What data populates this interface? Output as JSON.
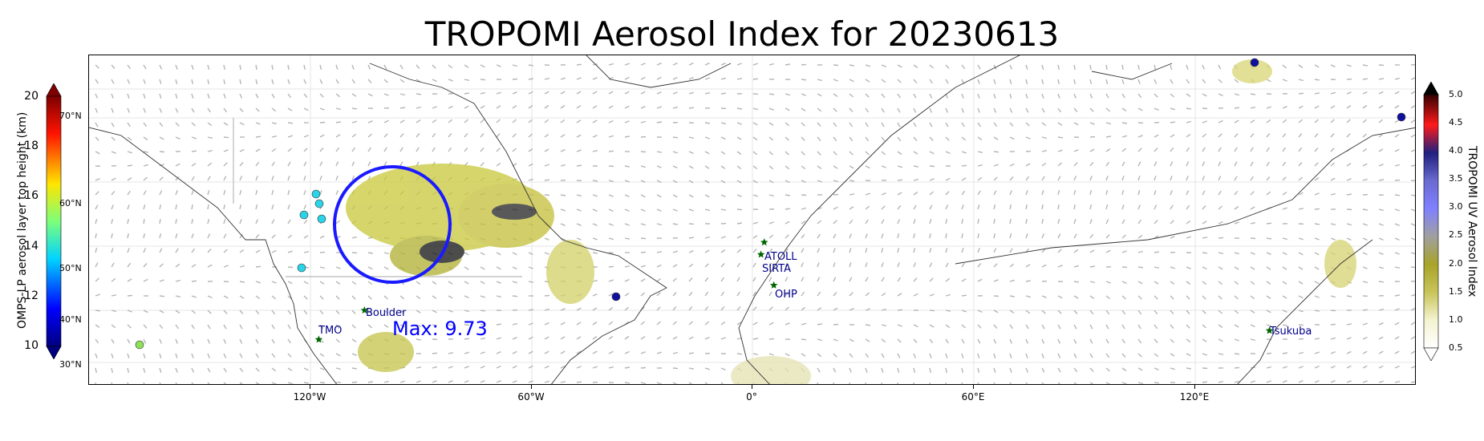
{
  "title": "TROPOMI Aerosol Index for 20230613",
  "max_label": "Max: 9.73",
  "x_axis": {
    "ticks": [
      {
        "label": "120°W",
        "lon": -120
      },
      {
        "label": "60°W",
        "lon": -60
      },
      {
        "label": "0°",
        "lon": 0
      },
      {
        "label": "60°E",
        "lon": 60
      },
      {
        "label": "120°E",
        "lon": 120
      }
    ],
    "range": [
      -180,
      180
    ]
  },
  "lat_labels": [
    "70°N",
    "60°N",
    "50°N",
    "40°N",
    "30°N"
  ],
  "left_colorbar": {
    "label": "OMPS-LP aerosol layer top height (km)",
    "ticks": [
      "20",
      "18",
      "16",
      "14",
      "12",
      "10"
    ],
    "range": [
      10,
      20
    ]
  },
  "right_colorbar": {
    "label": "TROPOMI UV Aerosol Index",
    "ticks": [
      "5.0",
      "4.5",
      "4.0",
      "3.5",
      "3.0",
      "2.5",
      "2.0",
      "1.5",
      "1.0",
      "0.5"
    ],
    "range": [
      0.5,
      5.0
    ]
  },
  "stations": [
    {
      "name": "ATOLL",
      "lon": 3.1,
      "lat": 50.6
    },
    {
      "name": "SIRTA",
      "lon": 2.2,
      "lat": 48.7
    },
    {
      "name": "OHP",
      "lon": 5.7,
      "lat": 43.9
    },
    {
      "name": "Boulder",
      "lon": -105.3,
      "lat": 40.0
    },
    {
      "name": "TMO",
      "lon": -117.7,
      "lat": 34.4
    },
    {
      "name": "Tsukuba",
      "lon": 140.1,
      "lat": 36.1
    }
  ],
  "colors": {
    "circle": "#1a1aff",
    "station_star": "#006400",
    "station_text": "#00008b",
    "max_text": "#0000ff"
  }
}
